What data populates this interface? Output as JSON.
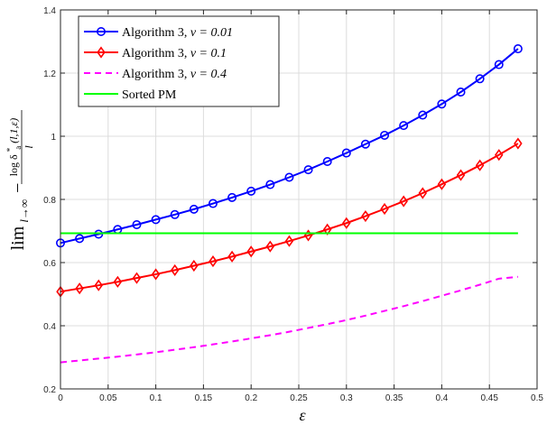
{
  "chart_data": {
    "type": "line",
    "title": "",
    "xlabel": "ε",
    "ylabel": "lim_{l→∞} −log δ_a*(l,1,ε) / l",
    "ylabel_parts": {
      "lim": "lim",
      "lim_sub": "l→∞",
      "minus": "−",
      "num_log": "log δ",
      "num_a": "a",
      "num_star": "*",
      "num_args": "(l,1,ε)",
      "den": "l"
    },
    "xlim": [
      0,
      0.5
    ],
    "ylim": [
      0.2,
      1.4
    ],
    "xticks": [
      "0",
      "0.05",
      "0.1",
      "0.15",
      "0.2",
      "0.25",
      "0.3",
      "0.35",
      "0.4",
      "0.45",
      "0.5"
    ],
    "yticks": [
      "0.2",
      "0.4",
      "0.6",
      "0.8",
      "1",
      "1.2",
      "1.4"
    ],
    "grid": true,
    "legend_position": "top-left",
    "x": [
      0,
      0.02,
      0.04,
      0.06,
      0.08,
      0.1,
      0.12,
      0.14,
      0.16,
      0.18,
      0.2,
      0.22,
      0.24,
      0.26,
      0.28,
      0.3,
      0.32,
      0.34,
      0.36,
      0.38,
      0.4,
      0.42,
      0.44,
      0.46,
      0.48
    ],
    "series": [
      {
        "name": "Algorithm 3, ν = 0.01",
        "legend_prefix": "Algorithm 3, ",
        "legend_math": "ν = 0.01",
        "color": "#0000ff",
        "style": "solid",
        "marker": "circle",
        "values": [
          0.662,
          0.676,
          0.69,
          0.705,
          0.72,
          0.736,
          0.752,
          0.769,
          0.787,
          0.806,
          0.826,
          0.847,
          0.87,
          0.894,
          0.92,
          0.947,
          0.975,
          1.003,
          1.034,
          1.067,
          1.102,
          1.14,
          1.182,
          1.227,
          1.277
        ]
      },
      {
        "name": "Algorithm 3, ν = 0.1",
        "legend_prefix": "Algorithm 3, ",
        "legend_math": "ν = 0.1",
        "color": "#ff0000",
        "style": "solid",
        "marker": "diamond",
        "values": [
          0.508,
          0.518,
          0.528,
          0.539,
          0.551,
          0.563,
          0.576,
          0.59,
          0.604,
          0.619,
          0.635,
          0.651,
          0.668,
          0.686,
          0.705,
          0.725,
          0.747,
          0.77,
          0.794,
          0.82,
          0.848,
          0.877,
          0.908,
          0.941,
          0.977
        ]
      },
      {
        "name": "Algorithm 3, ν = 0.4",
        "legend_prefix": "Algorithm 3, ",
        "legend_math": "ν = 0.4",
        "color": "#ff00ff",
        "style": "dashed",
        "marker": "none",
        "values": [
          0.284,
          0.29,
          0.296,
          0.302,
          0.309,
          0.316,
          0.324,
          0.332,
          0.341,
          0.35,
          0.36,
          0.37,
          0.381,
          0.393,
          0.405,
          0.418,
          0.432,
          0.447,
          0.462,
          0.478,
          0.495,
          0.512,
          0.53,
          0.549,
          0.555
        ]
      },
      {
        "name": "Sorted PM",
        "legend_prefix": "Sorted PM",
        "legend_math": "",
        "color": "#00ff00",
        "style": "solid",
        "marker": "none",
        "values": [
          0.693,
          0.693,
          0.693,
          0.693,
          0.693,
          0.693,
          0.693,
          0.693,
          0.693,
          0.693,
          0.693,
          0.693,
          0.693,
          0.693,
          0.693,
          0.693,
          0.693,
          0.693,
          0.693,
          0.693,
          0.693,
          0.693,
          0.693,
          0.693,
          0.693
        ]
      }
    ]
  }
}
